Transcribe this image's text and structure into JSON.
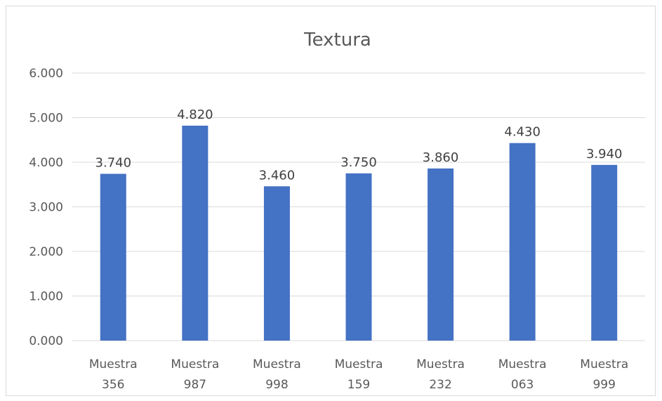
{
  "chart_data": {
    "type": "bar",
    "title": "Textura",
    "categories": [
      [
        "Muestra",
        "356"
      ],
      [
        "Muestra",
        "987"
      ],
      [
        "Muestra",
        "998"
      ],
      [
        "Muestra",
        "159"
      ],
      [
        "Muestra",
        "232"
      ],
      [
        "Muestra",
        "063"
      ],
      [
        "Muestra",
        "999"
      ]
    ],
    "values": [
      3.74,
      4.82,
      3.46,
      3.75,
      3.86,
      4.43,
      3.94
    ],
    "data_labels": [
      "3.740",
      "4.820",
      "3.460",
      "3.750",
      "3.860",
      "4.430",
      "3.940"
    ],
    "y_ticks": [
      "0.000",
      "1.000",
      "2.000",
      "3.000",
      "4.000",
      "5.000",
      "6.000"
    ],
    "ylim": [
      0,
      6
    ],
    "grid": true,
    "legend": "none",
    "bar_color": "#4472c4",
    "grid_color": "#d9d9d9",
    "text_color": "#595959"
  }
}
